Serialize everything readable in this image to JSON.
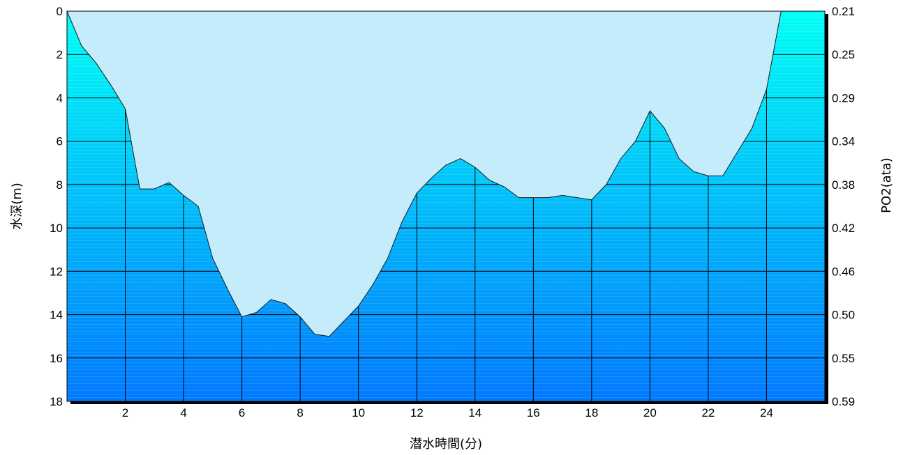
{
  "chart_data": {
    "type": "area",
    "xlabel": "潜水時間(分)",
    "ylabel": "水深(m)",
    "y2label": "PO2(ata)",
    "xlim": [
      0,
      26
    ],
    "ylim": [
      0,
      18
    ],
    "y_inverted": true,
    "grid": true,
    "x_ticks": [
      "2",
      "4",
      "6",
      "8",
      "10",
      "12",
      "14",
      "16",
      "18",
      "20",
      "22",
      "24"
    ],
    "y_ticks": [
      "0",
      "2",
      "4",
      "6",
      "8",
      "10",
      "12",
      "14",
      "16",
      "18"
    ],
    "y2_ticks": [
      "0.21",
      "0.25",
      "0.29",
      "0.34",
      "0.38",
      "0.42",
      "0.46",
      "0.50",
      "0.55",
      "0.59"
    ],
    "colors": {
      "surface_fill": "#c4ecfb",
      "water_top": "#00fff6",
      "water_bottom": "#0078ff",
      "grid": "#000000"
    },
    "series": [
      {
        "x": [
          0,
          0.5,
          1,
          1.5,
          2,
          2.5,
          3,
          3.5,
          4,
          4.5,
          5,
          5.5,
          6,
          6.5,
          7,
          7.5,
          8,
          8.5,
          9,
          9.5,
          10,
          10.5,
          11,
          11.5,
          12,
          12.5,
          13,
          13.5,
          14,
          14.5,
          15,
          15.5,
          16,
          16.5,
          17,
          17.5,
          18,
          18.5,
          19,
          19.5,
          20,
          20.5,
          21,
          21.5,
          22,
          22.5,
          23,
          23.5,
          24,
          24.5,
          26
        ],
        "y": [
          0,
          1.6,
          2.4,
          3.4,
          4.5,
          8.2,
          8.2,
          7.9,
          8.5,
          9.0,
          11.4,
          12.8,
          14.1,
          13.9,
          13.3,
          13.5,
          14.1,
          14.9,
          15.0,
          14.3,
          13.6,
          12.6,
          11.4,
          9.7,
          8.4,
          7.7,
          7.1,
          6.8,
          7.2,
          7.8,
          8.1,
          8.6,
          8.6,
          8.6,
          8.5,
          8.6,
          8.7,
          8.0,
          6.8,
          6.0,
          4.6,
          5.4,
          6.8,
          7.4,
          7.6,
          7.6,
          6.5,
          5.4,
          3.6,
          0,
          0
        ]
      }
    ]
  }
}
